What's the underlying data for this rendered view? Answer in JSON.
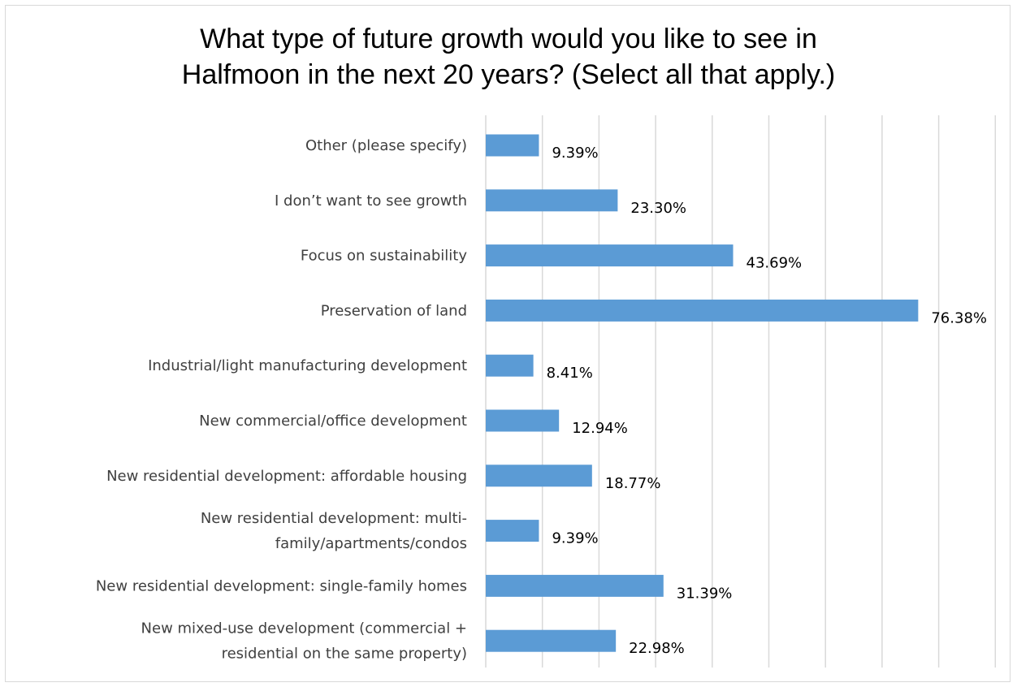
{
  "chart_data": {
    "type": "bar",
    "orientation": "horizontal",
    "title_lines": [
      "What type of future growth would you like to see in",
      "Halfmoon in the next 20 years? (Select all that apply.)"
    ],
    "categories": [
      [
        "Other (please specify)"
      ],
      [
        "I don’t want to see growth"
      ],
      [
        "Focus on sustainability"
      ],
      [
        "Preservation of land"
      ],
      [
        "Industrial/light manufacturing development"
      ],
      [
        "New commercial/office development"
      ],
      [
        "New residential development: affordable housing"
      ],
      [
        "New residential development: multi-",
        "family/apartments/condos"
      ],
      [
        "New residential development: single-family homes"
      ],
      [
        "New mixed-use development (commercial +",
        "residential on the same property)"
      ]
    ],
    "values": [
      9.39,
      23.3,
      43.69,
      76.38,
      8.41,
      12.94,
      18.77,
      9.39,
      31.39,
      22.98
    ],
    "data_labels": [
      "9.39%",
      "23.30%",
      "43.69%",
      "76.38%",
      "8.41%",
      "12.94%",
      "18.77%",
      "9.39%",
      "31.39%",
      "22.98%"
    ],
    "xlim": [
      0,
      90
    ],
    "x_gridline_step": 10,
    "grid": true,
    "legend": "none",
    "bar_color": "#5b9bd5",
    "gridline_color": "#d9d9d9",
    "text_color": "#404040"
  }
}
